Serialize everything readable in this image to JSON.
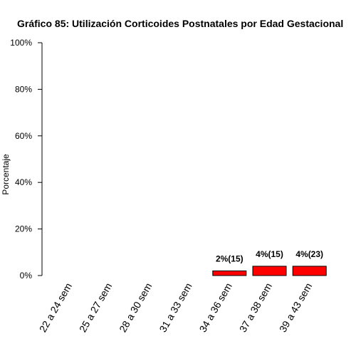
{
  "chart_data": {
    "type": "bar",
    "title": "Gráfico 85: Utilización Corticoides Postnatales por  Edad Gestacional",
    "xlabel": "",
    "ylabel": "Porcentaje",
    "ylim": [
      0,
      100
    ],
    "y_ticks": [
      0,
      20,
      40,
      60,
      80,
      100
    ],
    "y_tick_labels": [
      "0%",
      "20%",
      "40%",
      "60%",
      "80%",
      "100%"
    ],
    "categories": [
      "22 a 24 sem",
      "25 a 27 sem",
      "28 a 30 sem",
      "31 a 33 sem",
      "34 a 36 sem",
      "37 a 38 sem",
      "39 a 43 sem"
    ],
    "values": [
      0,
      0,
      0,
      0,
      2,
      4,
      4
    ],
    "data_labels": [
      "",
      "",
      "",
      "",
      "2%(15)",
      "4%(15)",
      "4%(23)"
    ],
    "bar_color": "#ff0000",
    "grid": false
  }
}
